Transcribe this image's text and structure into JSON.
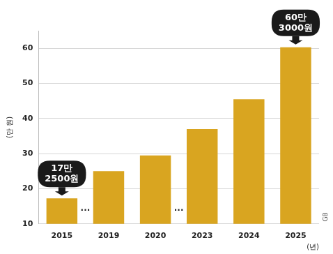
{
  "chart_data": {
    "type": "bar",
    "categories": [
      "2015",
      "2019",
      "2020",
      "2023",
      "2024",
      "2025"
    ],
    "values": [
      17.25,
      25,
      29.5,
      37,
      45.5,
      60.3
    ],
    "color": "#d9a520",
    "y_label": "(만 원)",
    "x_label": "(년)",
    "ylim": [
      10,
      65
    ],
    "yticks": [
      10,
      20,
      30,
      40,
      50,
      60
    ],
    "grid": true,
    "legend": "none",
    "annotations": [
      {
        "text": [
          "17만",
          "2500원"
        ],
        "category": "2015",
        "value": 17.25
      },
      {
        "text": [
          "60만",
          "3000원"
        ],
        "category": "2025",
        "value": 60.3
      }
    ],
    "breaks": [
      {
        "text": "...",
        "between": [
          "2015",
          "2019"
        ]
      },
      {
        "text": "...",
        "between": [
          "2020",
          "2023"
        ]
      }
    ],
    "source": "GB"
  }
}
